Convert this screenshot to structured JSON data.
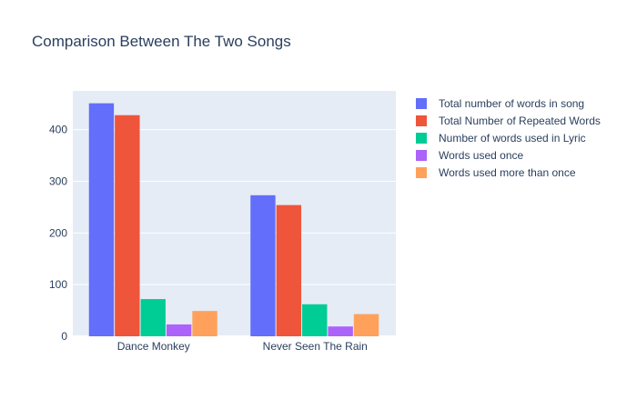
{
  "chart_data": {
    "type": "bar",
    "title": "Comparison Between The Two Songs",
    "categories": [
      "Dance Monkey",
      "Never Seen The Rain"
    ],
    "series": [
      {
        "name": "Total number of words in song",
        "values": [
          451,
          273
        ],
        "color": "#636efa"
      },
      {
        "name": "Total Number of Repeated Words",
        "values": [
          428,
          254
        ],
        "color": "#ef553b"
      },
      {
        "name": "Number of words used in Lyric",
        "values": [
          72,
          62
        ],
        "color": "#00cc96"
      },
      {
        "name": "Words used once",
        "values": [
          23,
          19
        ],
        "color": "#ab63fa"
      },
      {
        "name": "Words used more than once",
        "values": [
          49,
          43
        ],
        "color": "#ffa15a"
      }
    ],
    "ylim": [
      0,
      475
    ],
    "yticks": [
      0,
      100,
      200,
      300,
      400
    ],
    "grid": true,
    "legend_position": "right",
    "plot_background": "#e5ecf6"
  }
}
